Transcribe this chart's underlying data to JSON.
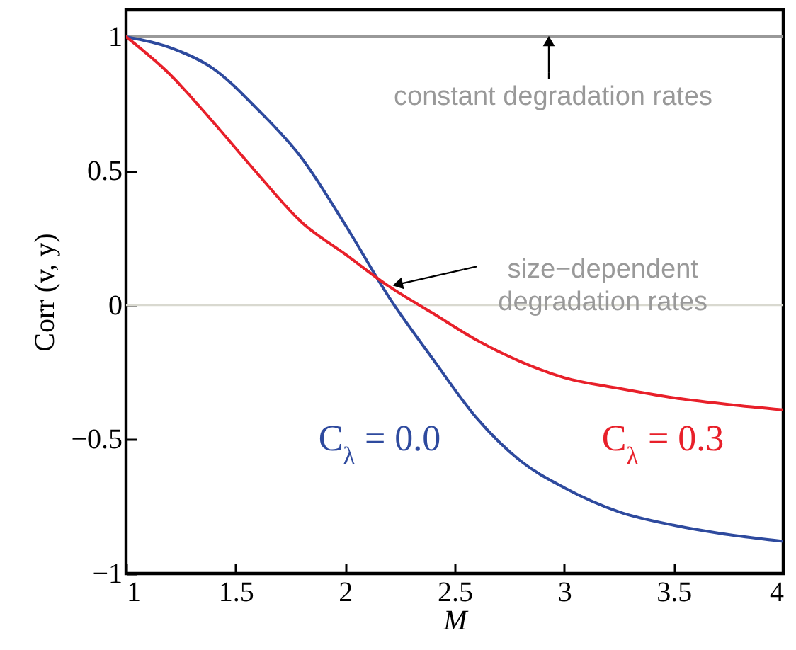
{
  "chart_data": {
    "type": "line",
    "xlabel": "M",
    "ylabel": "Corr (v, y)",
    "x": [
      1,
      1.2,
      1.4,
      1.6,
      1.8,
      2,
      2.2,
      2.4,
      2.6,
      2.8,
      3,
      3.25,
      3.5,
      3.75,
      4
    ],
    "series": [
      {
        "color": "#999999",
        "x": [
          1,
          4
        ],
        "values": [
          1,
          1
        ]
      },
      {
        "name": "C$_{λ}$ = 0.0",
        "color": "#2e4a9e",
        "values": [
          1,
          0.96,
          0.88,
          0.73,
          0.55,
          0.3,
          0.03,
          -0.2,
          -0.42,
          -0.58,
          -0.68,
          -0.77,
          -0.82,
          -0.855,
          -0.88
        ]
      },
      {
        "name": "C$_{λ}$ = 0.3",
        "color": "#e8202a",
        "values": [
          1,
          0.86,
          0.68,
          0.49,
          0.31,
          0.19,
          0.07,
          -0.03,
          -0.13,
          -0.21,
          -0.27,
          -0.31,
          -0.345,
          -0.37,
          -0.39
        ]
      }
    ],
    "xlim": [
      1,
      4
    ],
    "xticks": [
      1,
      1.5,
      2,
      2.5,
      3,
      3.5,
      4
    ],
    "ylim": [
      -1,
      1.1
    ],
    "yticks": [
      {
        "value": -1,
        "label": "−1"
      },
      {
        "value": -0.5,
        "label": "−0.5"
      },
      0,
      0.5,
      1
    ],
    "ref_lines": [
      {
        "axis": "y",
        "value": 0,
        "color": "#d9d9d0"
      }
    ],
    "annotations": [
      {
        "text": "constant degradation rates",
        "x": 2.93,
        "y": 1
      },
      {
        "text": "size−dependent degradation rates",
        "x": 2.2,
        "y": 0.07
      }
    ],
    "grid": false
  }
}
